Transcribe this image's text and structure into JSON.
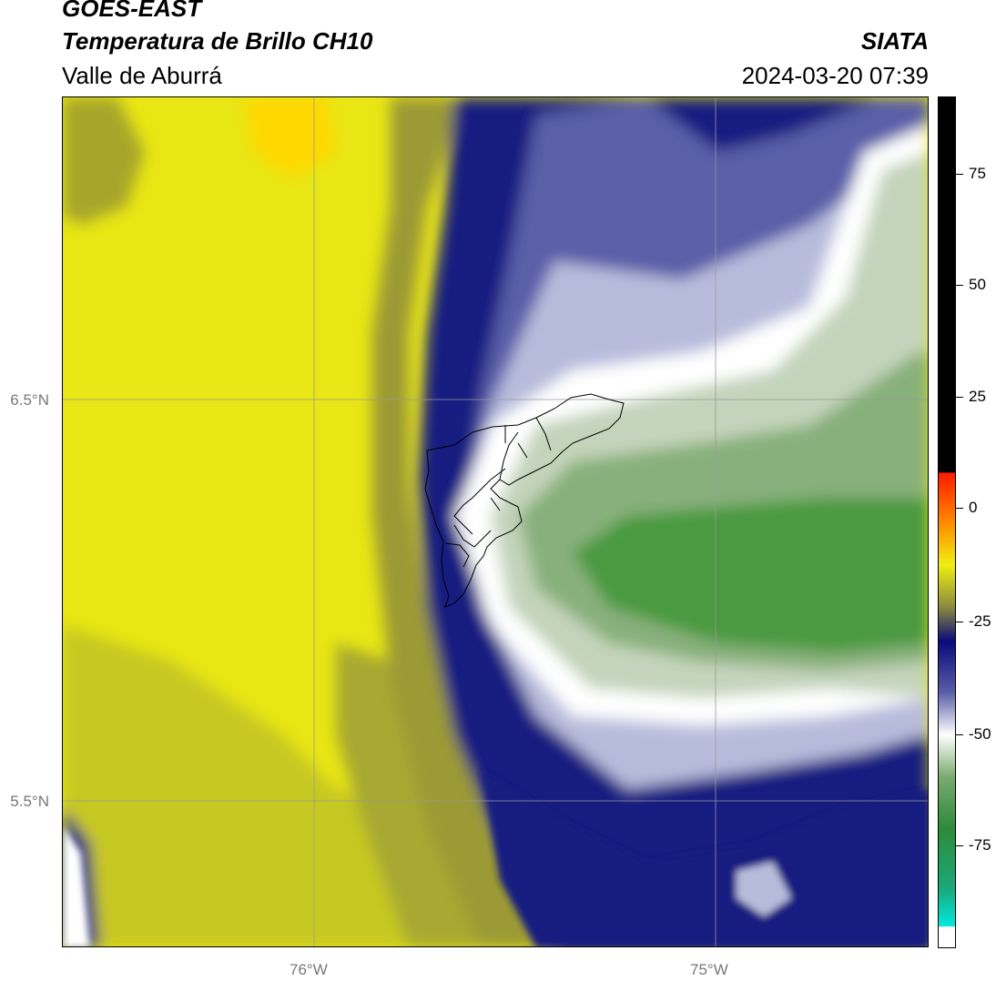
{
  "header": {
    "satellite": "GOES-EAST",
    "product": "Temperatura de Brillo CH10",
    "region": "Valle de Aburrá",
    "agency": "SIATA",
    "datetime": "2024-03-20 07:39"
  },
  "map": {
    "lat_labels": [
      "6.5°N",
      "5.5°N"
    ],
    "lon_labels": [
      "76°W",
      "75°W"
    ],
    "colors": {
      "yellow": "#f0ee10",
      "olive": "#a8a830",
      "navy": "#101a80",
      "lavender": "#b8bcdc",
      "white": "#ffffff",
      "light_green": "#c8d8c0",
      "green": "#4a9a40"
    }
  },
  "colorbar": {
    "labels": [
      "75",
      "50",
      "25",
      "0",
      "-25",
      "-50",
      "-75"
    ],
    "colors": {
      "black": "#000000",
      "red": "#ff2200",
      "orange": "#ff9900",
      "yellow": "#f0ee10",
      "navy": "#0a0a7a",
      "white": "#ffffff",
      "green": "#2e8b3a",
      "cyan": "#00e8e0"
    }
  }
}
